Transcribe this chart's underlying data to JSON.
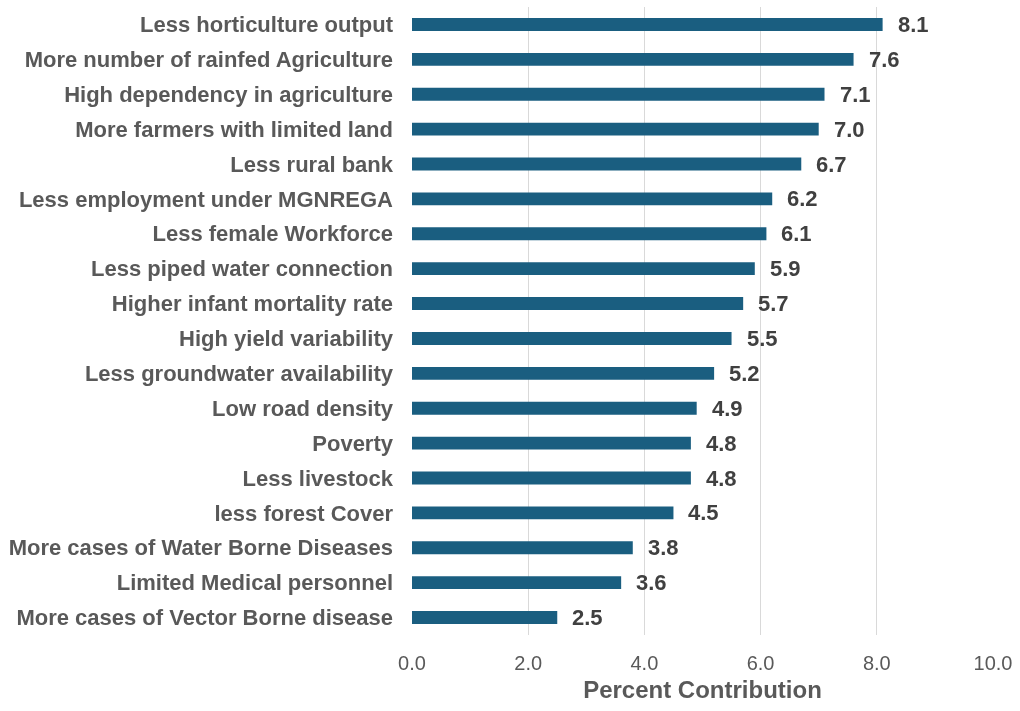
{
  "chart_data": {
    "type": "bar",
    "orientation": "horizontal",
    "xlabel": "Percent Contribution",
    "categories": [
      "Less horticulture output",
      "More number of rainfed Agriculture",
      "High dependency in agriculture",
      "More farmers with limited land",
      "Less rural bank",
      "Less employment under MGNREGA",
      "Less female Workforce",
      "Less piped water connection",
      "Higher infant mortality rate",
      "High yield variability",
      "Less groundwater availability",
      "Low road density",
      "Poverty",
      "Less livestock",
      "less forest Cover",
      "More cases of Water Borne Diseases",
      "Limited Medical personnel",
      "More cases of Vector Borne disease"
    ],
    "values": [
      8.1,
      7.6,
      7.1,
      7.0,
      6.7,
      6.2,
      6.1,
      5.9,
      5.7,
      5.5,
      5.2,
      4.9,
      4.8,
      4.8,
      4.5,
      3.8,
      3.6,
      2.5
    ],
    "value_labels": [
      "8.1",
      "7.6",
      "7.1",
      "7.0",
      "6.7",
      "6.2",
      "6.1",
      "5.9",
      "5.7",
      "5.5",
      "5.2",
      "4.9",
      "4.8",
      "4.8",
      "4.5",
      "3.8",
      "3.6",
      "2.5"
    ],
    "color": "#1a5e80",
    "xlim": [
      0,
      10
    ],
    "xticks": [
      {
        "value": 0,
        "label": "0.0"
      },
      {
        "value": 2,
        "label": "2.0"
      },
      {
        "value": 4,
        "label": "4.0"
      },
      {
        "value": 6,
        "label": "6.0"
      },
      {
        "value": 8,
        "label": "8.0"
      },
      {
        "value": 10,
        "label": "10.0"
      }
    ],
    "grid": "x"
  }
}
